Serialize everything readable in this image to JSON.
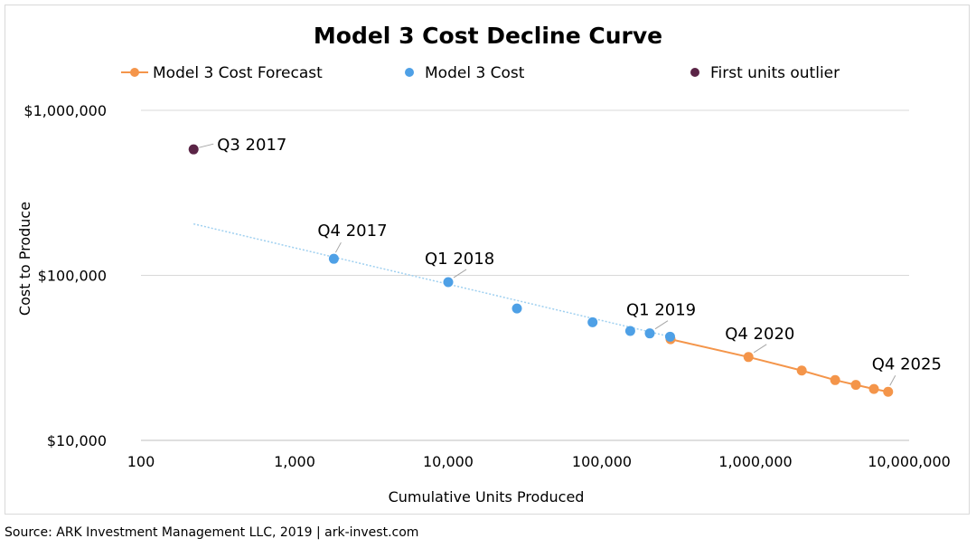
{
  "chart_data": {
    "type": "scatter",
    "title": "Model 3 Cost Decline Curve",
    "xlabel": "Cumulative Units Produced",
    "ylabel": "Cost to Produce",
    "x_scale": "log",
    "y_scale": "log",
    "xlim": [
      100,
      10000000
    ],
    "ylim": [
      10000,
      1000000
    ],
    "x_ticks": [
      "100",
      "1,000",
      "10,000",
      "100,000",
      "1,000,000",
      "10,000,000"
    ],
    "y_ticks": [
      "$10,000",
      "$100,000",
      "$1,000,000"
    ],
    "gridlines": "horizontal",
    "legend_position": "top",
    "series": [
      {
        "name": "Model 3 Cost Forecast",
        "kind": "line-marker",
        "color": "#f4954a",
        "points": [
          {
            "x": 280000,
            "y": 41000
          },
          {
            "x": 900000,
            "y": 32000
          },
          {
            "x": 2000000,
            "y": 26500
          },
          {
            "x": 3300000,
            "y": 23200
          },
          {
            "x": 4500000,
            "y": 21700
          },
          {
            "x": 5900000,
            "y": 20500
          },
          {
            "x": 7300000,
            "y": 19700
          }
        ]
      },
      {
        "name": "Model 3 Cost",
        "kind": "marker",
        "color": "#4ea0e6",
        "points": [
          {
            "x": 1800,
            "y": 126000
          },
          {
            "x": 10000,
            "y": 91000
          },
          {
            "x": 28000,
            "y": 63000
          },
          {
            "x": 87000,
            "y": 52000
          },
          {
            "x": 153000,
            "y": 46000
          },
          {
            "x": 205000,
            "y": 44500
          },
          {
            "x": 278000,
            "y": 42500
          }
        ],
        "trend": {
          "color": "#9fd0f0",
          "from": {
            "x": 220,
            "y": 205000
          },
          "to": {
            "x": 278000,
            "y": 42500
          }
        }
      },
      {
        "name": "First units outlier",
        "kind": "marker",
        "color": "#5a2446",
        "points": [
          {
            "x": 220,
            "y": 580000
          }
        ]
      }
    ],
    "annotations": [
      {
        "text": "Q3 2017",
        "x": 220,
        "y": 580000,
        "anchor": "right"
      },
      {
        "text": "Q4 2017",
        "x": 1800,
        "y": 126000,
        "anchor": "above"
      },
      {
        "text": "Q1 2018",
        "x": 10000,
        "y": 91000,
        "anchor": "above-right"
      },
      {
        "text": "Q1 2019",
        "x": 205000,
        "y": 44500,
        "anchor": "above-right"
      },
      {
        "text": "Q4 2020",
        "x": 900000,
        "y": 32000,
        "anchor": "above-right"
      },
      {
        "text": "Q4 2025",
        "x": 7300000,
        "y": 19700,
        "anchor": "above"
      }
    ]
  },
  "source": "Source: ARK Investment Management LLC, 2019 | ark-invest.com"
}
